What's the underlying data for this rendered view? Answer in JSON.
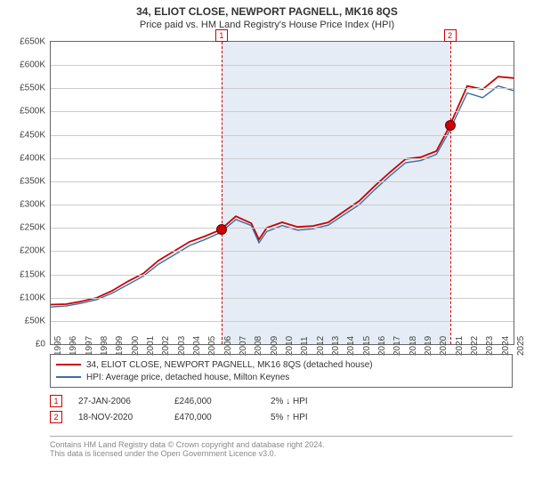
{
  "title": "34, ELIOT CLOSE, NEWPORT PAGNELL, MK16 8QS",
  "subtitle": "Price paid vs. HM Land Registry's House Price Index (HPI)",
  "chart": {
    "type": "line",
    "x_year_min": 1995,
    "x_year_max": 2025,
    "ylim": [
      0,
      650000
    ],
    "ytick_step": 50000,
    "y_tick_labels": [
      "£0",
      "£50K",
      "£100K",
      "£150K",
      "£200K",
      "£250K",
      "£300K",
      "£350K",
      "£400K",
      "£450K",
      "£500K",
      "£550K",
      "£600K",
      "£650K"
    ],
    "x_tick_years": [
      1995,
      1996,
      1997,
      1998,
      1999,
      2000,
      2001,
      2002,
      2003,
      2004,
      2005,
      2006,
      2007,
      2008,
      2009,
      2010,
      2011,
      2012,
      2013,
      2014,
      2015,
      2016,
      2017,
      2018,
      2019,
      2020,
      2021,
      2022,
      2023,
      2024,
      2025
    ],
    "background_color": "#ffffff",
    "grid_color": "#cccccc",
    "shade_color": "rgba(180,200,225,.35)",
    "series": [
      {
        "name": "price",
        "label": "34, ELIOT CLOSE, NEWPORT PAGNELL, MK16 8QS (detached house)",
        "color": "#cc0000",
        "width": 1.8,
        "data": [
          [
            1995,
            85000
          ],
          [
            1996,
            86000
          ],
          [
            1997,
            92000
          ],
          [
            1998,
            100000
          ],
          [
            1999,
            115000
          ],
          [
            2000,
            135000
          ],
          [
            2001,
            152000
          ],
          [
            2002,
            180000
          ],
          [
            2003,
            200000
          ],
          [
            2004,
            220000
          ],
          [
            2005,
            232000
          ],
          [
            2006,
            246000
          ],
          [
            2007,
            275000
          ],
          [
            2008,
            260000
          ],
          [
            2008.5,
            225000
          ],
          [
            2009,
            250000
          ],
          [
            2010,
            262000
          ],
          [
            2011,
            252000
          ],
          [
            2012,
            254000
          ],
          [
            2013,
            262000
          ],
          [
            2014,
            285000
          ],
          [
            2015,
            308000
          ],
          [
            2016,
            340000
          ],
          [
            2017,
            370000
          ],
          [
            2018,
            398000
          ],
          [
            2019,
            402000
          ],
          [
            2020,
            415000
          ],
          [
            2020.88,
            470000
          ],
          [
            2021,
            480000
          ],
          [
            2022,
            555000
          ],
          [
            2023,
            548000
          ],
          [
            2024,
            575000
          ],
          [
            2025,
            572000
          ]
        ]
      },
      {
        "name": "hpi",
        "label": "HPI: Average price, detached house, Milton Keynes",
        "color": "#3b6ea5",
        "width": 1.4,
        "data": [
          [
            1995,
            80000
          ],
          [
            1996,
            82000
          ],
          [
            1997,
            88000
          ],
          [
            1998,
            96000
          ],
          [
            1999,
            110000
          ],
          [
            2000,
            128000
          ],
          [
            2001,
            146000
          ],
          [
            2002,
            172000
          ],
          [
            2003,
            192000
          ],
          [
            2004,
            212000
          ],
          [
            2005,
            225000
          ],
          [
            2006,
            240000
          ],
          [
            2007,
            268000
          ],
          [
            2008,
            255000
          ],
          [
            2008.5,
            218000
          ],
          [
            2009,
            242000
          ],
          [
            2010,
            255000
          ],
          [
            2011,
            245000
          ],
          [
            2012,
            248000
          ],
          [
            2013,
            256000
          ],
          [
            2014,
            278000
          ],
          [
            2015,
            300000
          ],
          [
            2016,
            332000
          ],
          [
            2017,
            362000
          ],
          [
            2018,
            390000
          ],
          [
            2019,
            395000
          ],
          [
            2020,
            408000
          ],
          [
            2020.88,
            460000
          ],
          [
            2021,
            470000
          ],
          [
            2022,
            540000
          ],
          [
            2023,
            530000
          ],
          [
            2024,
            555000
          ],
          [
            2025,
            545000
          ]
        ]
      }
    ],
    "markers": [
      {
        "id": "1",
        "year": 2006.07,
        "value": 246000,
        "color": "#cc0000"
      },
      {
        "id": "2",
        "year": 2020.88,
        "value": 470000,
        "color": "#cc0000"
      }
    ]
  },
  "legend": {
    "items": [
      {
        "color": "#cc0000",
        "label": "34, ELIOT CLOSE, NEWPORT PAGNELL, MK16 8QS (detached house)"
      },
      {
        "color": "#3b6ea5",
        "label": "HPI: Average price, detached house, Milton Keynes"
      }
    ]
  },
  "sales": [
    {
      "id": "1",
      "date": "27-JAN-2006",
      "price": "£246,000",
      "delta": "2% ↓ HPI"
    },
    {
      "id": "2",
      "date": "18-NOV-2020",
      "price": "£470,000",
      "delta": "5% ↑ HPI"
    }
  ],
  "footer": {
    "l1": "Contains HM Land Registry data © Crown copyright and database right 2024.",
    "l2": "This data is licensed under the Open Government Licence v3.0."
  }
}
